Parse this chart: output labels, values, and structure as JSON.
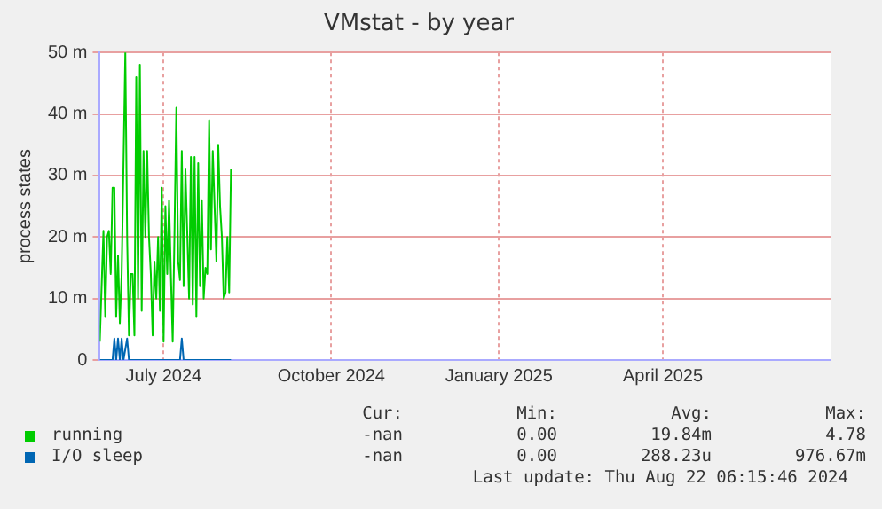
{
  "chart_data": {
    "type": "line",
    "title": "VMstat - by year",
    "ylabel": "process states",
    "xlim": [
      "2024-06-11",
      "2025-07-17"
    ],
    "xticks": [
      {
        "value": "2024-07-16",
        "label": "July 2024"
      },
      {
        "value": "2024-10-16",
        "label": "October 2024"
      },
      {
        "value": "2025-01-16",
        "label": "January 2025"
      },
      {
        "value": "2025-04-16",
        "label": "April 2025"
      }
    ],
    "ylim": [
      0,
      50
    ],
    "yticks": [
      0,
      {
        "value": 10,
        "label": "10 m"
      },
      {
        "value": 20,
        "label": "20 m"
      },
      {
        "value": 30,
        "label": "30 m"
      },
      {
        "value": 40,
        "label": "40 m"
      },
      {
        "value": 50,
        "label": "50 m"
      }
    ],
    "grid": true,
    "legend": "bottom",
    "marker": "none",
    "line_style": "solid",
    "series": [
      {
        "name": "running",
        "color": "#00cc00",
        "x": [
          "2024-06-11",
          "2024-06-13",
          "2024-06-14",
          "2024-06-15",
          "2024-06-16",
          "2024-06-17",
          "2024-06-18",
          "2024-06-19",
          "2024-06-20",
          "2024-06-21",
          "2024-06-22",
          "2024-06-23",
          "2024-06-25",
          "2024-06-26",
          "2024-06-27",
          "2024-06-28",
          "2024-06-29",
          "2024-06-30",
          "2024-07-01",
          "2024-07-02",
          "2024-07-03",
          "2024-07-04",
          "2024-07-05",
          "2024-07-06",
          "2024-07-07",
          "2024-07-08",
          "2024-07-09",
          "2024-07-10",
          "2024-07-11",
          "2024-07-12",
          "2024-07-13",
          "2024-07-14",
          "2024-07-15",
          "2024-07-16",
          "2024-07-17",
          "2024-07-18",
          "2024-07-19",
          "2024-07-20",
          "2024-07-21",
          "2024-07-22",
          "2024-07-23",
          "2024-07-24",
          "2024-07-25",
          "2024-07-26",
          "2024-07-27",
          "2024-07-28",
          "2024-07-30",
          "2024-07-31",
          "2024-08-01",
          "2024-08-02",
          "2024-08-03",
          "2024-08-04",
          "2024-08-05",
          "2024-08-06",
          "2024-08-07",
          "2024-08-08",
          "2024-08-09",
          "2024-08-10",
          "2024-08-11",
          "2024-08-12",
          "2024-08-14",
          "2024-08-15",
          "2024-08-16",
          "2024-08-17",
          "2024-08-18",
          "2024-08-19",
          "2024-08-20",
          "2024-08-21",
          "2024-08-22"
        ],
        "values": [
          3,
          21,
          7,
          20,
          21,
          14,
          28,
          28,
          7,
          17,
          6,
          14,
          50,
          20,
          4,
          14,
          14,
          4,
          46,
          10,
          48,
          8,
          34,
          20,
          34,
          20,
          14,
          4,
          16,
          10,
          20,
          8,
          28,
          3,
          25,
          14,
          26,
          14,
          3,
          21,
          41,
          16,
          13,
          34,
          12,
          31,
          10,
          33,
          9,
          33,
          7,
          32,
          12,
          26,
          10,
          15,
          14,
          39,
          18,
          34,
          16,
          35,
          25,
          20,
          10,
          11,
          20,
          11,
          31
        ]
      },
      {
        "name": "I/O sleep",
        "color": "#0066b3",
        "x": [
          "2024-06-11",
          "2024-06-18",
          "2024-06-19",
          "2024-06-20",
          "2024-06-21",
          "2024-06-22",
          "2024-06-23",
          "2024-06-24",
          "2024-06-26",
          "2024-06-27",
          "2024-07-25",
          "2024-07-26",
          "2024-07-27",
          "2024-08-22"
        ],
        "values": [
          0,
          0,
          3.5,
          0,
          3.5,
          0,
          3.5,
          0,
          3.5,
          0,
          0,
          3.5,
          0,
          0
        ]
      }
    ],
    "annotations": [
      "Cur:",
      "Min:",
      "Avg:",
      "Max:",
      "-nan",
      "0.00",
      "19.84m",
      "4.78",
      "-nan",
      "0.00",
      "288.23u",
      "976.67m",
      "Last update: Thu Aug 22 06:15:46 2024"
    ]
  }
}
